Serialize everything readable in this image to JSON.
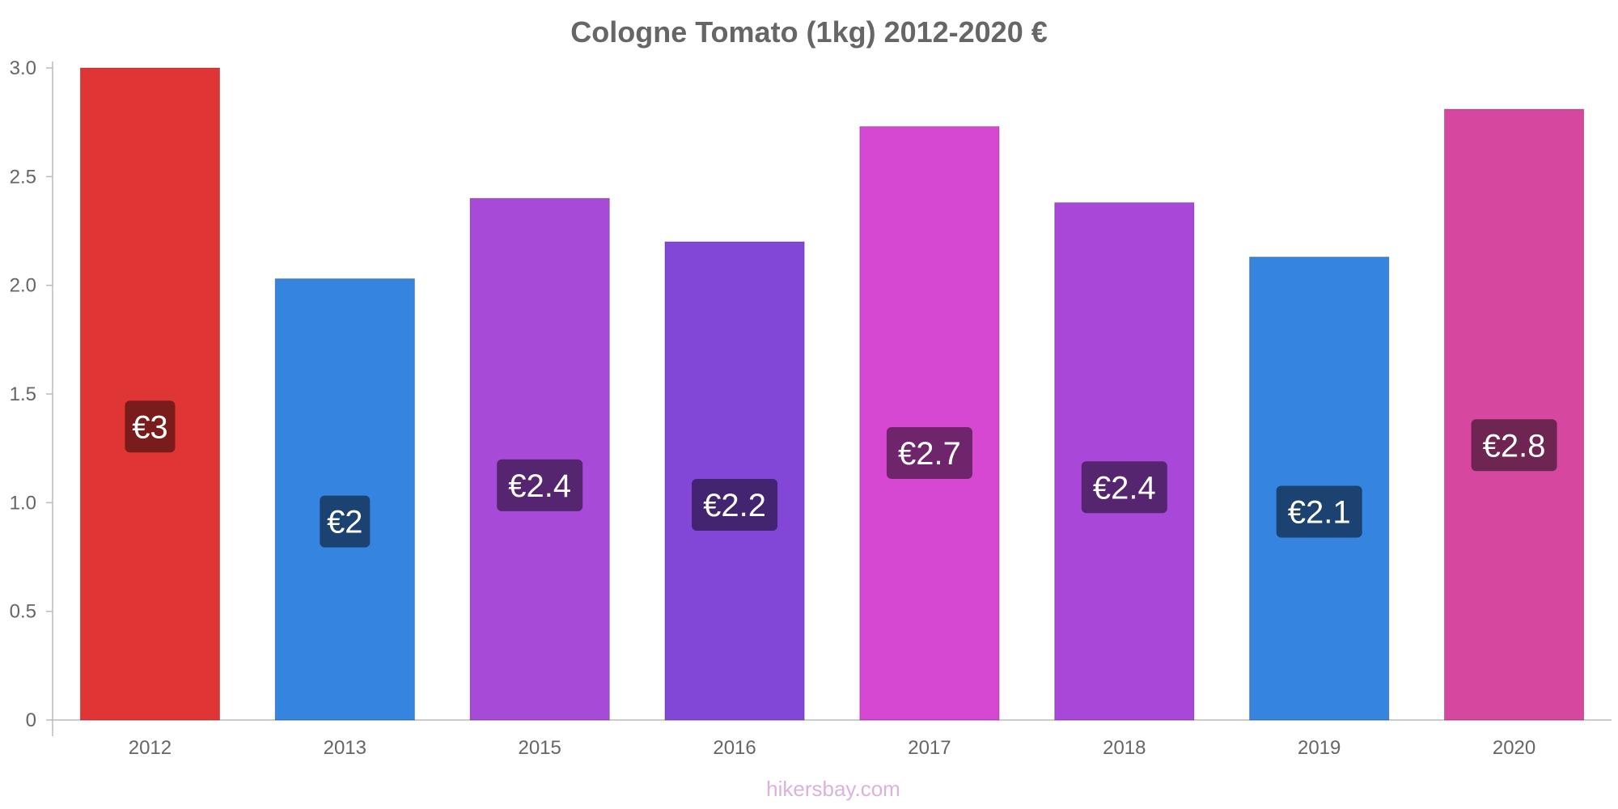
{
  "chart_data": {
    "type": "bar",
    "title": "Cologne Tomato (1kg) 2012-2020 €",
    "categories": [
      "2012",
      "2013",
      "2015",
      "2016",
      "2017",
      "2018",
      "2019",
      "2020"
    ],
    "values": [
      3.0,
      2.03,
      2.4,
      2.2,
      2.73,
      2.38,
      2.13,
      2.81
    ],
    "data_labels": [
      "€3",
      "€2",
      "€2.4",
      "€2.2",
      "€2.7",
      "€2.4",
      "€2.1",
      "€2.8"
    ],
    "bar_colors": [
      "#e03535",
      "#3584e0",
      "#a84ad8",
      "#8347d8",
      "#d647d2",
      "#a847d8",
      "#3584e0",
      "#d647a0"
    ],
    "label_colors": [
      "#7a1c1c",
      "#1c4272",
      "#552570",
      "#422470",
      "#6e256c",
      "#552570",
      "#1c4272",
      "#6e2552"
    ],
    "ylim": [
      0,
      3.0
    ],
    "yticks": [
      0,
      0.5,
      1.0,
      1.5,
      2.0,
      2.5,
      3.0
    ],
    "ytick_labels": [
      "0",
      "0.5",
      "1.0",
      "1.5",
      "2.0",
      "2.5",
      "3.0"
    ],
    "xlabel": "",
    "ylabel": "",
    "grid": false,
    "legend": "none"
  },
  "watermark": "hikersbay.com"
}
